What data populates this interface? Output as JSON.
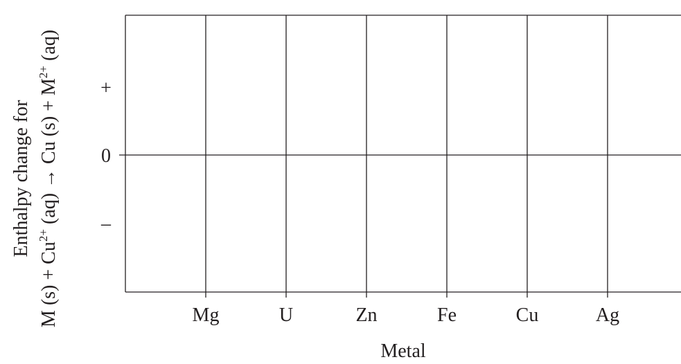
{
  "chart_data": {
    "type": "bar",
    "title": "",
    "xlabel": "Metal",
    "ylabel_line1": "Enthalpy change for",
    "ylabel_line2": {
      "p1": "M (s) + Cu",
      "sup1": "2+",
      "p2": " (aq) → Cu (s) + M",
      "sup2": "2+",
      "p3": " (aq)"
    },
    "categories": [
      "Mg",
      "U",
      "Zn",
      "Fe",
      "Cu",
      "Ag"
    ],
    "series": [],
    "y_tick_labels": {
      "plus": "+",
      "zero": "0",
      "minus": "–"
    },
    "grid": "vertical lines at each category, horizontal line at 0",
    "colors": {
      "line": "#231f20",
      "background": "#ffffff"
    }
  }
}
